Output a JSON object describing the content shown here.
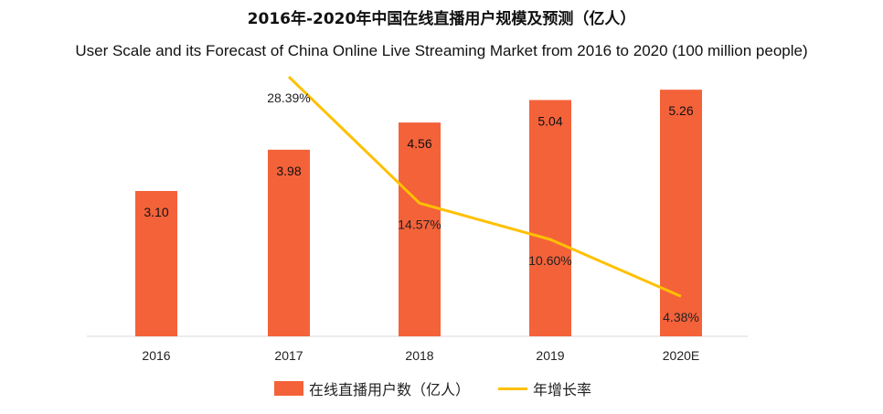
{
  "chart_data": {
    "type": "bar",
    "title": "2016年-2020年中国在线直播用户规模及预测（亿人）",
    "subtitle": "User Scale and its Forecast of China Online Live Streaming Market from 2016 to 2020 (100 million people)",
    "categories": [
      "2016",
      "2017",
      "2018",
      "2019",
      "2020E"
    ],
    "series": [
      {
        "name": "在线直播用户数（亿人）",
        "kind": "bar",
        "color": "#F4623A",
        "values": [
          3.1,
          3.98,
          4.56,
          5.04,
          5.26
        ],
        "labels": [
          "3.10",
          "3.98",
          "4.56",
          "5.04",
          "5.26"
        ]
      },
      {
        "name": "年增长率",
        "kind": "line",
        "color": "#FFC000",
        "values": [
          null,
          28.39,
          14.57,
          10.6,
          4.38
        ],
        "labels": [
          "",
          "28.39%",
          "14.57%",
          "10.60%",
          "4.38%"
        ]
      }
    ],
    "ylim_bar": [
      0,
      5.6
    ],
    "ylim_line": [
      0,
      32
    ],
    "grid": false,
    "legend_position": "bottom"
  }
}
